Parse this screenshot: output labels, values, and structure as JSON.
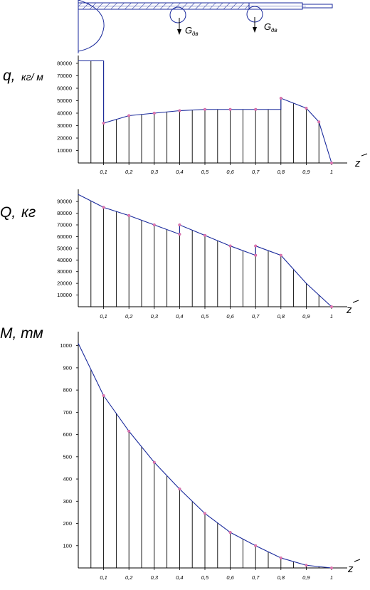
{
  "scheme": {
    "loads": [
      {
        "label": "G",
        "sub": "дв"
      },
      {
        "label": "G",
        "sub": "дв"
      }
    ],
    "colors": {
      "line": "#1a2a9c",
      "hatch": "#1a2a9c"
    }
  },
  "axis_x_label": "z",
  "chart_data": [
    {
      "type": "area",
      "title_main": "q,",
      "title_unit": "кг/ м",
      "x_ticks": [
        "0,1",
        "0,2",
        "0,3",
        "0,4",
        "0,5",
        "0,6",
        "0,7",
        "0,8",
        "0,9",
        "1"
      ],
      "y_ticks": [
        "10000",
        "20000",
        "30000",
        "40000",
        "50000",
        "60000",
        "70000",
        "80000"
      ],
      "ylim": [
        0,
        84000
      ],
      "xlim": [
        0,
        1
      ],
      "line": [
        {
          "x": 0,
          "y": 82000
        },
        {
          "x": 0.1,
          "y": 82000
        },
        {
          "x": 0.1,
          "y": 32000
        },
        {
          "x": 0.2,
          "y": 38000
        },
        {
          "x": 0.3,
          "y": 40000
        },
        {
          "x": 0.4,
          "y": 42000
        },
        {
          "x": 0.5,
          "y": 43000
        },
        {
          "x": 0.6,
          "y": 43000
        },
        {
          "x": 0.7,
          "y": 43000
        },
        {
          "x": 0.8,
          "y": 43000
        },
        {
          "x": 0.8,
          "y": 52000
        },
        {
          "x": 0.9,
          "y": 44000
        },
        {
          "x": 0.95,
          "y": 33000
        },
        {
          "x": 1,
          "y": 0
        }
      ],
      "markers": [
        {
          "x": 0.1,
          "y": 32000
        },
        {
          "x": 0.2,
          "y": 38000
        },
        {
          "x": 0.3,
          "y": 40000
        },
        {
          "x": 0.4,
          "y": 42000
        },
        {
          "x": 0.5,
          "y": 43000
        },
        {
          "x": 0.6,
          "y": 43000
        },
        {
          "x": 0.7,
          "y": 43000
        },
        {
          "x": 0.8,
          "y": 52000
        },
        {
          "x": 0.9,
          "y": 44000
        },
        {
          "x": 0.95,
          "y": 33000
        },
        {
          "x": 1,
          "y": 0
        }
      ]
    },
    {
      "type": "area",
      "title_main": "Q,",
      "title_unit": "кг",
      "x_ticks": [
        "0,1",
        "0,2",
        "0,3",
        "0,4",
        "0,5",
        "0,6",
        "0,7",
        "0,8",
        "0,9",
        "1"
      ],
      "y_ticks": [
        "10000",
        "20000",
        "30000",
        "40000",
        "50000",
        "60000",
        "70000",
        "80000",
        "90000"
      ],
      "ylim": [
        0,
        98000
      ],
      "xlim": [
        0,
        1
      ],
      "line": [
        {
          "x": 0,
          "y": 96000
        },
        {
          "x": 0.1,
          "y": 85000
        },
        {
          "x": 0.2,
          "y": 78000
        },
        {
          "x": 0.3,
          "y": 70000
        },
        {
          "x": 0.4,
          "y": 62000
        },
        {
          "x": 0.4,
          "y": 70000
        },
        {
          "x": 0.5,
          "y": 61000
        },
        {
          "x": 0.6,
          "y": 52000
        },
        {
          "x": 0.7,
          "y": 44000
        },
        {
          "x": 0.7,
          "y": 52000
        },
        {
          "x": 0.8,
          "y": 44000
        },
        {
          "x": 0.9,
          "y": 20000
        },
        {
          "x": 1,
          "y": 0
        }
      ],
      "markers": [
        {
          "x": 0.1,
          "y": 85000
        },
        {
          "x": 0.2,
          "y": 78000
        },
        {
          "x": 0.3,
          "y": 70000
        },
        {
          "x": 0.4,
          "y": 62000
        },
        {
          "x": 0.4,
          "y": 70000
        },
        {
          "x": 0.5,
          "y": 61000
        },
        {
          "x": 0.6,
          "y": 52000
        },
        {
          "x": 0.7,
          "y": 44000
        },
        {
          "x": 0.7,
          "y": 52000
        },
        {
          "x": 0.8,
          "y": 44000
        },
        {
          "x": 1,
          "y": 0
        }
      ]
    },
    {
      "type": "area",
      "title_main": "M, тм",
      "title_unit": "",
      "x_ticks": [
        "0,1",
        "0,2",
        "0,3",
        "0,4",
        "0,5",
        "0,6",
        "0,7",
        "0,8",
        "0,9",
        "1"
      ],
      "y_ticks": [
        "100",
        "200",
        "300",
        "400",
        "500",
        "600",
        "700",
        "800",
        "900",
        "1000"
      ],
      "ylim": [
        0,
        1050
      ],
      "xlim": [
        0,
        1
      ],
      "line": [
        {
          "x": 0,
          "y": 1010
        },
        {
          "x": 0.1,
          "y": 775
        },
        {
          "x": 0.2,
          "y": 615
        },
        {
          "x": 0.3,
          "y": 475
        },
        {
          "x": 0.4,
          "y": 355
        },
        {
          "x": 0.5,
          "y": 245
        },
        {
          "x": 0.6,
          "y": 160
        },
        {
          "x": 0.7,
          "y": 100
        },
        {
          "x": 0.8,
          "y": 45
        },
        {
          "x": 0.9,
          "y": 12
        },
        {
          "x": 1,
          "y": 0
        }
      ],
      "markers": [
        {
          "x": 0.1,
          "y": 775
        },
        {
          "x": 0.2,
          "y": 615
        },
        {
          "x": 0.3,
          "y": 475
        },
        {
          "x": 0.4,
          "y": 355
        },
        {
          "x": 0.5,
          "y": 245
        },
        {
          "x": 0.6,
          "y": 160
        },
        {
          "x": 0.7,
          "y": 100
        },
        {
          "x": 0.8,
          "y": 45
        },
        {
          "x": 0.9,
          "y": 12
        },
        {
          "x": 1,
          "y": 0
        }
      ]
    }
  ]
}
